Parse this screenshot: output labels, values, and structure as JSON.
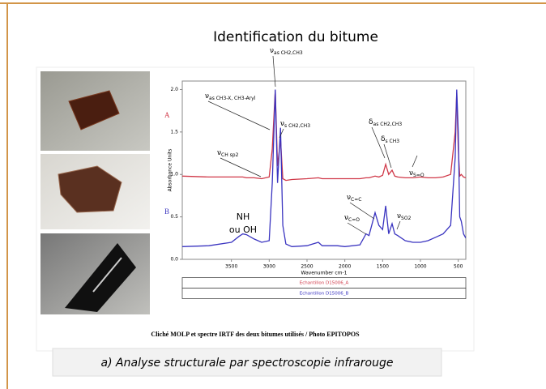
{
  "slide_title": "Identification du bitume",
  "figure_caption": "Cliché MOLP et spectre IRTF des deux bitumes utilisés / Photo EPITOPOS",
  "caption": "a) Analyse structurale par spectroscopie infrarouge",
  "chart_data": {
    "type": "line",
    "xlabel": "Wavenumber cm-1",
    "ylabel": "Absorbance Units",
    "xlim": [
      4150,
      400
    ],
    "ylim": [
      0,
      2.1
    ],
    "xticks": [
      3500,
      3000,
      2500,
      2000,
      1500,
      1000,
      500
    ],
    "yticks": [
      {
        "value": 0,
        "label": "0.0"
      },
      0.5,
      {
        "value": 1,
        "label": "1.0"
      },
      1.5,
      {
        "value": 2,
        "label": "2.0"
      }
    ],
    "x": [
      4150,
      3800,
      3500,
      3400,
      3350,
      3300,
      3200,
      3100,
      3000,
      2960,
      2920,
      2890,
      2850,
      2820,
      2780,
      2700,
      2500,
      2350,
      2300,
      2100,
      2000,
      1800,
      1720,
      1680,
      1600,
      1550,
      1500,
      1460,
      1420,
      1375,
      1340,
      1300,
      1200,
      1100,
      1000,
      900,
      800,
      700,
      600,
      540,
      520,
      500,
      480,
      460,
      430,
      400
    ],
    "series": [
      {
        "name": "Echantillon D15006_A",
        "label": "A",
        "color": "#d03848",
        "values": [
          0.98,
          0.97,
          0.97,
          0.97,
          0.97,
          0.96,
          0.96,
          0.95,
          0.97,
          1.3,
          1.99,
          1.1,
          1.41,
          0.95,
          0.93,
          0.94,
          0.95,
          0.96,
          0.95,
          0.95,
          0.95,
          0.95,
          0.96,
          0.96,
          0.98,
          0.97,
          0.99,
          1.12,
          1.0,
          1.05,
          0.98,
          0.97,
          0.96,
          0.96,
          0.97,
          0.96,
          0.96,
          0.97,
          1.0,
          1.5,
          1.96,
          1.3,
          0.98,
          1.0,
          0.97,
          0.96
        ]
      },
      {
        "name": "Echantillon D15006_B",
        "label": "B",
        "color": "#3a34c0",
        "values": [
          0.15,
          0.16,
          0.2,
          0.27,
          0.3,
          0.29,
          0.24,
          0.2,
          0.22,
          0.9,
          2.0,
          0.9,
          1.55,
          0.4,
          0.18,
          0.15,
          0.16,
          0.2,
          0.16,
          0.16,
          0.15,
          0.17,
          0.3,
          0.28,
          0.55,
          0.4,
          0.35,
          0.63,
          0.3,
          0.42,
          0.3,
          0.28,
          0.22,
          0.2,
          0.2,
          0.22,
          0.26,
          0.3,
          0.4,
          1.2,
          2.0,
          1.5,
          0.5,
          0.45,
          0.3,
          0.25
        ]
      }
    ],
    "annotations": [
      {
        "symbol": "ν",
        "sub": "as CH2,CH3"
      },
      {
        "symbol": "ν",
        "sub": "as CH3-X, CH3-Aryl"
      },
      {
        "symbol": "ν",
        "sub": "s CH2,CH3"
      },
      {
        "symbol": "ν",
        "sub": "CH sp2"
      },
      {
        "symbol": "δ",
        "sub": "as CH2,CH3"
      },
      {
        "symbol": "δ",
        "sub": "s CH3"
      },
      {
        "symbol": "ν",
        "sub": "S=O"
      },
      {
        "symbol": "ν",
        "sub": "C=C"
      },
      {
        "symbol": "ν",
        "sub": "C=O"
      },
      {
        "symbol": "ν",
        "sub": "SO2"
      }
    ],
    "notes": [
      "NH",
      "ou OH"
    ]
  }
}
